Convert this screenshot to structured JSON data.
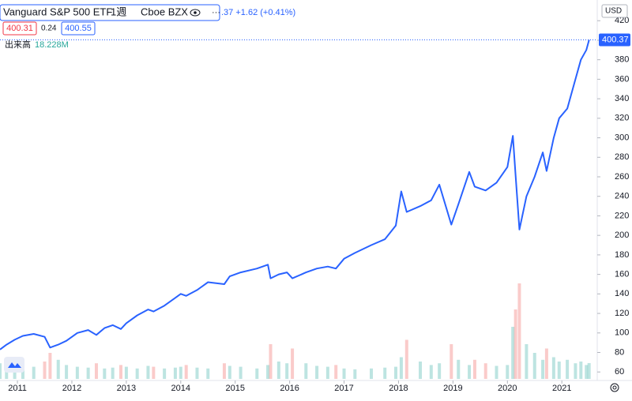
{
  "chart_data": {
    "type": "line",
    "title": "Vanguard S&P 500 ETF",
    "interval": "1週",
    "exchange": "Cboe BZX",
    "quote": ".37 +1.62 (+0.41%)",
    "bid": "400.31",
    "spread": "0.24",
    "ask": "400.55",
    "volume_label": "出来高",
    "volume_value": "18.228M",
    "currency": "USD",
    "x": [
      2010.68,
      2010.8,
      2010.95,
      2011.1,
      2011.3,
      2011.5,
      2011.6,
      2011.75,
      2011.9,
      2012.1,
      2012.3,
      2012.45,
      2012.6,
      2012.75,
      2012.9,
      2013.0,
      2013.2,
      2013.4,
      2013.5,
      2013.7,
      2013.9,
      2014.0,
      2014.1,
      2014.3,
      2014.5,
      2014.8,
      2014.9,
      2015.1,
      2015.4,
      2015.6,
      2015.65,
      2015.8,
      2015.95,
      2016.05,
      2016.3,
      2016.5,
      2016.7,
      2016.85,
      2017.0,
      2017.2,
      2017.5,
      2017.75,
      2017.95,
      2018.05,
      2018.15,
      2018.4,
      2018.6,
      2018.75,
      2018.97,
      2019.1,
      2019.3,
      2019.4,
      2019.6,
      2019.8,
      2020.0,
      2020.1,
      2020.15,
      2020.22,
      2020.35,
      2020.5,
      2020.65,
      2020.72,
      2020.85,
      2020.95,
      2021.1,
      2021.25,
      2021.35,
      2021.45,
      2021.5
    ],
    "series": [
      {
        "name": "Vanguard S&P 500 ETF",
        "color": "#2962ff",
        "values": [
          83,
          88,
          93,
          97,
          99,
          96,
          85,
          88,
          92,
          100,
          103,
          98,
          105,
          108,
          104,
          110,
          118,
          124,
          122,
          128,
          136,
          140,
          138,
          144,
          152,
          150,
          158,
          162,
          166,
          170,
          156,
          160,
          162,
          156,
          162,
          166,
          168,
          166,
          176,
          182,
          190,
          196,
          210,
          245,
          224,
          230,
          236,
          252,
          211,
          232,
          265,
          250,
          246,
          254,
          270,
          302,
          262,
          206,
          240,
          260,
          285,
          266,
          300,
          320,
          330,
          360,
          380,
          390,
          400.37
        ]
      },
      {
        "name": "出来高",
        "values": [
          18,
          16,
          14,
          15,
          14,
          20,
          30,
          22,
          16,
          14,
          13,
          18,
          12,
          13,
          16,
          14,
          12,
          15,
          14,
          12,
          13,
          14,
          16,
          13,
          12,
          18,
          15,
          14,
          12,
          16,
          40,
          20,
          18,
          35,
          18,
          15,
          14,
          16,
          12,
          11,
          12,
          13,
          14,
          25,
          45,
          20,
          16,
          18,
          40,
          22,
          16,
          22,
          18,
          15,
          16,
          60,
          80,
          110,
          40,
          30,
          22,
          35,
          25,
          20,
          22,
          18,
          20,
          16,
          18.228
        ]
      }
    ],
    "xlim": [
      2010.68,
      2021.65
    ],
    "xticks": [
      2011,
      2012,
      2013,
      2014,
      2015,
      2016,
      2017,
      2018,
      2019,
      2020,
      2021
    ],
    "ylim": [
      61.8,
      421.8
    ],
    "yticks": [
      60,
      80,
      100,
      120,
      140,
      160,
      180,
      200,
      220,
      240,
      260,
      280,
      300,
      320,
      340,
      360,
      380,
      400,
      420
    ],
    "grid": false
  }
}
